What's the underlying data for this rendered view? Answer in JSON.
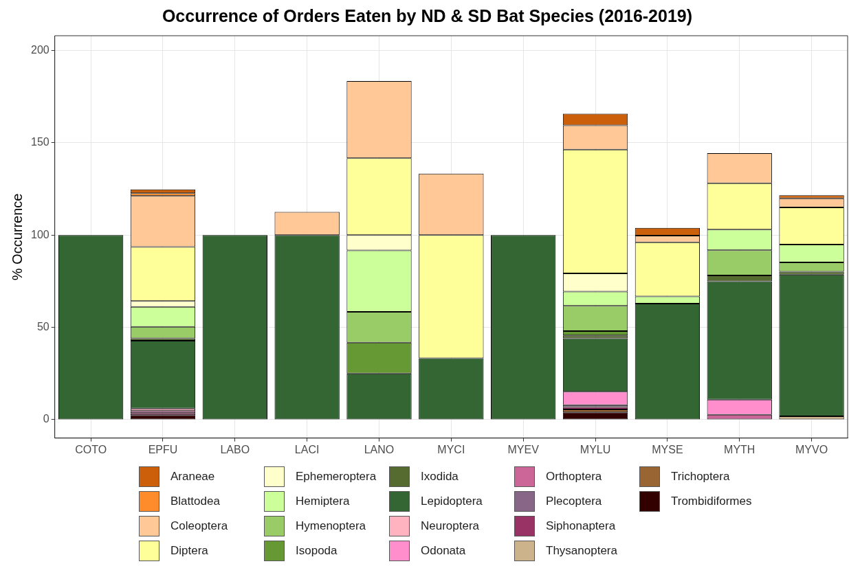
{
  "chart_data": {
    "type": "bar",
    "title": "Occurrence of Orders Eaten by ND & SD Bat Species (2016-2019)",
    "ylabel": "% Occurrence",
    "categories": [
      "COTO",
      "EPFU",
      "LABO",
      "LACI",
      "LANO",
      "MYCI",
      "MYEV",
      "MYLU",
      "MYSE",
      "MYTH",
      "MYVO"
    ],
    "stacked": true,
    "ylim": [
      -10,
      208
    ],
    "yticks": [
      0,
      50,
      100,
      150,
      200
    ],
    "grid": true,
    "legend": "bottom",
    "series": [
      {
        "name": "Trombidiformes",
        "color": "#330000",
        "values": [
          null,
          2.5,
          null,
          null,
          null,
          null,
          null,
          4.0,
          null,
          null,
          null
        ]
      },
      {
        "name": "Trichoptera",
        "color": "#996633",
        "values": [
          null,
          null,
          null,
          null,
          null,
          null,
          null,
          1.6,
          null,
          null,
          null
        ]
      },
      {
        "name": "Thysanoptera",
        "color": "#ccb38c",
        "values": [
          null,
          null,
          null,
          null,
          null,
          null,
          null,
          null,
          null,
          null,
          1.8
        ]
      },
      {
        "name": "Siphonaptera",
        "color": "#993366",
        "values": [
          null,
          1.1,
          null,
          null,
          null,
          null,
          null,
          1.3,
          null,
          null,
          null
        ]
      },
      {
        "name": "Plecoptera",
        "color": "#886688",
        "values": [
          null,
          null,
          null,
          null,
          null,
          null,
          null,
          1.0,
          null,
          null,
          null
        ]
      },
      {
        "name": "Orthoptera",
        "color": "#cc6699",
        "values": [
          null,
          1.1,
          null,
          null,
          null,
          null,
          null,
          null,
          null,
          2.7,
          null
        ]
      },
      {
        "name": "Odonata",
        "color": "#ff8fcc",
        "values": [
          null,
          null,
          null,
          null,
          null,
          null,
          null,
          7.2,
          null,
          8.2,
          null
        ]
      },
      {
        "name": "Neuroptera",
        "color": "#ffb3c1",
        "values": [
          null,
          1.3,
          null,
          null,
          null,
          null,
          null,
          null,
          null,
          null,
          null
        ]
      },
      {
        "name": "Lepidoptera",
        "color": "#336633",
        "values": [
          100,
          36.8,
          100,
          100,
          25,
          33.3,
          100,
          29,
          62.9,
          64.1,
          76.8
        ]
      },
      {
        "name": "Ixodida",
        "color": "#556b2f",
        "values": [
          null,
          1.3,
          null,
          null,
          null,
          null,
          null,
          1.6,
          null,
          3.1,
          1.6
        ]
      },
      {
        "name": "Isopoda",
        "color": "#669933",
        "values": [
          null,
          null,
          null,
          null,
          16.7,
          null,
          null,
          2.3,
          null,
          null,
          null
        ]
      },
      {
        "name": "Hymenoptera",
        "color": "#99cc66",
        "values": [
          null,
          6.2,
          null,
          null,
          16.7,
          null,
          null,
          13.7,
          null,
          13.7,
          5.0
        ]
      },
      {
        "name": "Hemiptera",
        "color": "#ccff99",
        "values": [
          null,
          10.8,
          null,
          null,
          33.3,
          null,
          null,
          7.7,
          3.9,
          11.2,
          9.7
        ]
      },
      {
        "name": "Ephemeroptera",
        "color": "#ffffcc",
        "values": [
          null,
          3.2,
          null,
          null,
          8.3,
          null,
          null,
          9.8,
          null,
          null,
          null
        ]
      },
      {
        "name": "Diptera",
        "color": "#ffff99",
        "values": [
          null,
          29.3,
          null,
          null,
          41.7,
          66.7,
          null,
          67.1,
          29.3,
          25.1,
          20.1
        ]
      },
      {
        "name": "Coleoptera",
        "color": "#ffc896",
        "values": [
          null,
          27.6,
          null,
          12.5,
          41.7,
          33.3,
          null,
          13.1,
          3.6,
          16.3,
          4.9
        ]
      },
      {
        "name": "Blattodea",
        "color": "#ff8c2a",
        "values": [
          null,
          1.5,
          null,
          null,
          null,
          null,
          null,
          null,
          null,
          null,
          null
        ]
      },
      {
        "name": "Araneae",
        "color": "#cc5f0a",
        "values": [
          null,
          2,
          null,
          null,
          null,
          null,
          null,
          6.4,
          4.2,
          null,
          1.7
        ]
      }
    ]
  }
}
